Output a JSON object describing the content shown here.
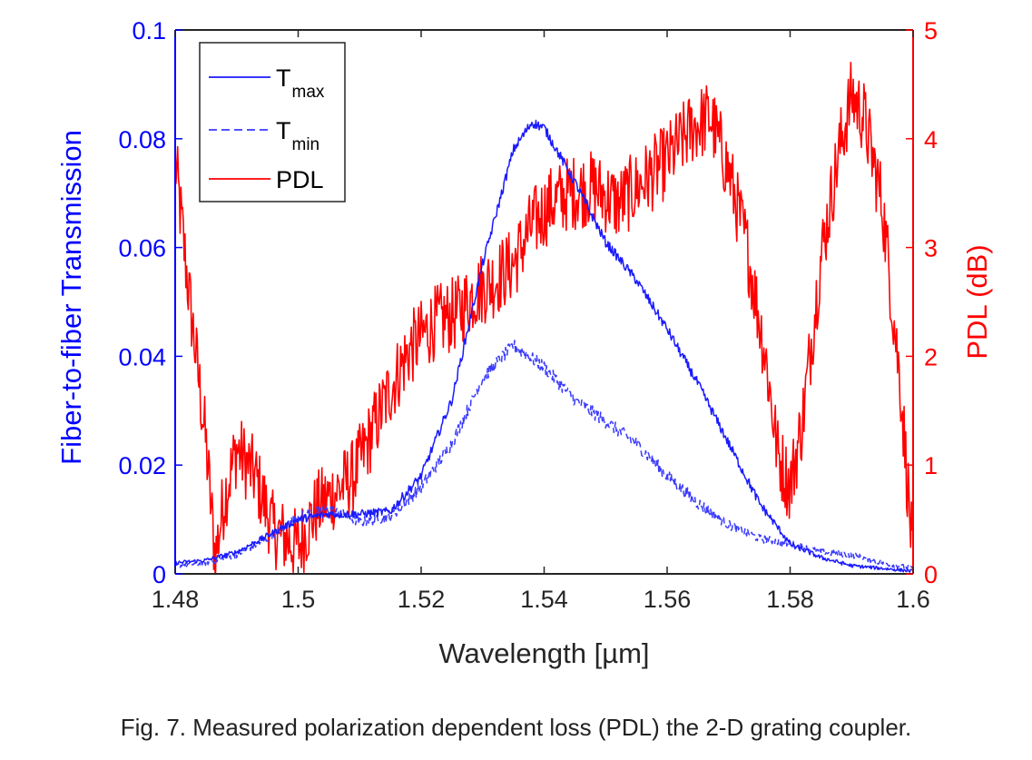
{
  "caption": "Fig. 7. Measured polarization dependent loss (PDL) the 2-D grating coupler.",
  "colors": {
    "left_axis": "#0000ff",
    "right_axis": "#ff0000",
    "tmax": "#1a1aff",
    "tmin": "#3a3aff",
    "pdl": "#ff0000"
  },
  "chart_data": {
    "type": "line",
    "xlabel": "Wavelength [µm]",
    "ylabel_left": "Fiber-to-fiber Transmission",
    "ylabel_right": "PDL (dB)",
    "xlim": [
      1.48,
      1.6
    ],
    "ylim_left": [
      0,
      0.1
    ],
    "ylim_right": [
      0,
      5
    ],
    "xticks": [
      "1.48",
      "1.5",
      "1.52",
      "1.54",
      "1.56",
      "1.58",
      "1.6"
    ],
    "yticks_left": [
      "0",
      "0.02",
      "0.04",
      "0.06",
      "0.08",
      "0.1"
    ],
    "yticks_right": [
      "0",
      "1",
      "2",
      "3",
      "4",
      "5"
    ],
    "grid": false,
    "legend_position": "top-left",
    "legend": [
      {
        "main": "T",
        "sub": "max",
        "style": "solid"
      },
      {
        "main": "T",
        "sub": "min",
        "style": "dashed"
      },
      {
        "main": "PDL",
        "sub": "",
        "style": "solid"
      }
    ],
    "series": [
      {
        "name": "Tmax",
        "axis": "left",
        "style": "solid",
        "x": [
          1.48,
          1.485,
          1.49,
          1.495,
          1.5,
          1.505,
          1.51,
          1.515,
          1.52,
          1.525,
          1.53,
          1.535,
          1.538,
          1.54,
          1.545,
          1.55,
          1.555,
          1.56,
          1.565,
          1.57,
          1.575,
          1.58,
          1.585,
          1.59,
          1.595,
          1.6
        ],
        "y": [
          0.002,
          0.0025,
          0.004,
          0.007,
          0.01,
          0.011,
          0.011,
          0.0115,
          0.018,
          0.032,
          0.057,
          0.078,
          0.083,
          0.082,
          0.072,
          0.061,
          0.054,
          0.045,
          0.035,
          0.024,
          0.013,
          0.0055,
          0.003,
          0.0015,
          0.001,
          0.0005
        ]
      },
      {
        "name": "Tmin",
        "axis": "left",
        "style": "dashed",
        "x": [
          1.48,
          1.485,
          1.49,
          1.495,
          1.5,
          1.505,
          1.51,
          1.515,
          1.52,
          1.525,
          1.53,
          1.535,
          1.54,
          1.545,
          1.55,
          1.555,
          1.56,
          1.565,
          1.57,
          1.575,
          1.58,
          1.585,
          1.59,
          1.595,
          1.6
        ],
        "y": [
          0.0015,
          0.002,
          0.0035,
          0.0065,
          0.0105,
          0.012,
          0.0095,
          0.0105,
          0.016,
          0.024,
          0.036,
          0.042,
          0.038,
          0.032,
          0.028,
          0.024,
          0.018,
          0.013,
          0.009,
          0.0065,
          0.0055,
          0.004,
          0.0035,
          0.002,
          0.001
        ]
      },
      {
        "name": "PDL",
        "axis": "right",
        "style": "solid",
        "x": [
          1.48,
          1.482,
          1.485,
          1.4865,
          1.488,
          1.49,
          1.493,
          1.496,
          1.5,
          1.503,
          1.506,
          1.509,
          1.512,
          1.515,
          1.518,
          1.522,
          1.526,
          1.529,
          1.532,
          1.535,
          1.538,
          1.541,
          1.544,
          1.548,
          1.552,
          1.556,
          1.56,
          1.564,
          1.567,
          1.57,
          1.573,
          1.576,
          1.578,
          1.58,
          1.582,
          1.585,
          1.588,
          1.59,
          1.592,
          1.595,
          1.598,
          1.6
        ],
        "y": [
          3.8,
          2.7,
          1.2,
          0.15,
          0.7,
          1.15,
          0.9,
          0.4,
          0.25,
          0.6,
          0.75,
          0.9,
          1.3,
          1.7,
          2.05,
          2.3,
          2.4,
          2.6,
          2.7,
          2.85,
          3.2,
          3.4,
          3.5,
          3.55,
          3.4,
          3.6,
          3.8,
          4.1,
          4.2,
          3.7,
          3.0,
          2.0,
          1.1,
          0.8,
          1.4,
          2.9,
          3.9,
          4.4,
          4.2,
          3.4,
          1.7,
          0.1
        ]
      }
    ]
  }
}
